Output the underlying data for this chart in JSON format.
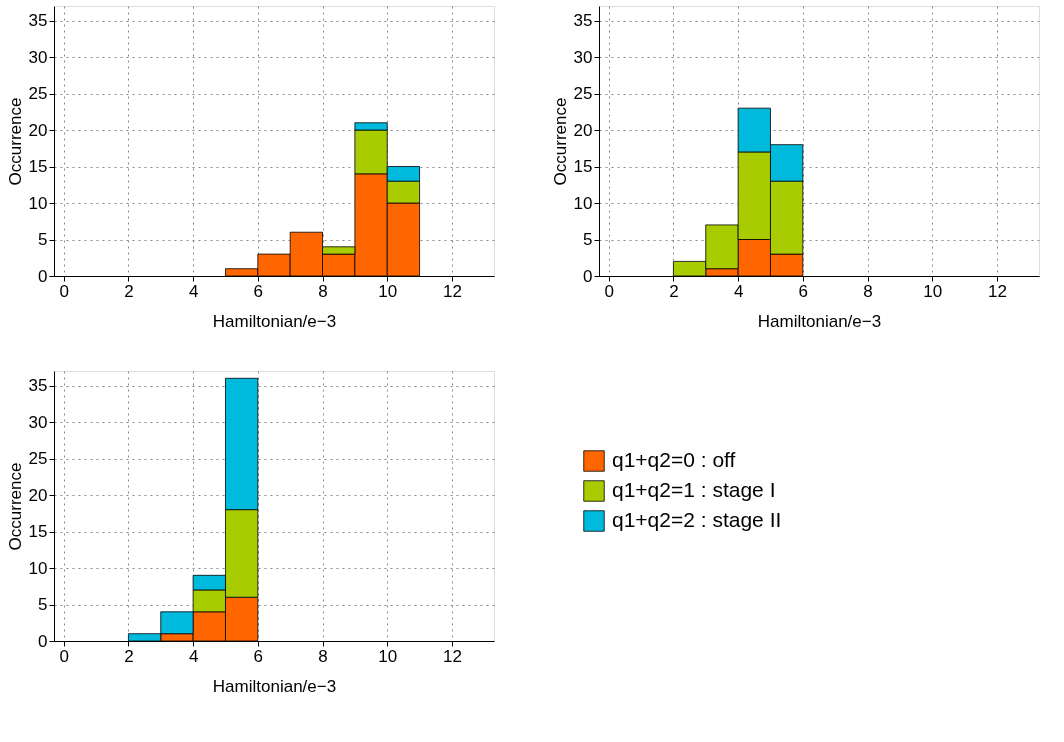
{
  "chart_data": [
    {
      "type": "bar",
      "xlabel": "Hamiltonian/e−3",
      "ylabel": "Occurrence",
      "stacked": true,
      "x": [
        5.5,
        6.5,
        7.5,
        8.5,
        9.5,
        10.5
      ],
      "xlim": [
        -0.3,
        13.3
      ],
      "ylim": [
        0,
        37
      ],
      "xticks": [
        0,
        2,
        4,
        6,
        8,
        10,
        12
      ],
      "yticks": [
        0,
        5,
        10,
        15,
        20,
        25,
        30,
        35
      ],
      "grid": true,
      "line_style": "dotted",
      "legend": "bottom right",
      "series": [
        {
          "name": "q1+q2=0 : off",
          "color": "#ff6600",
          "values": [
            1,
            3,
            6,
            3,
            14,
            10
          ]
        },
        {
          "name": "q1+q2=1 : stage I",
          "color": "#a8cc00",
          "values": [
            0,
            0,
            0,
            1,
            6,
            3
          ]
        },
        {
          "name": "q1+q2=2 : stage II",
          "color": "#00bade",
          "values": [
            0,
            0,
            0,
            0,
            1,
            2
          ]
        }
      ]
    },
    {
      "type": "bar",
      "xlabel": "Hamiltonian/e−3",
      "ylabel": "Occurrence",
      "stacked": true,
      "x": [
        2.5,
        3.5,
        4.5,
        5.5
      ],
      "xlim": [
        -0.3,
        13.3
      ],
      "ylim": [
        0,
        37
      ],
      "xticks": [
        0,
        2,
        4,
        6,
        8,
        10,
        12
      ],
      "yticks": [
        0,
        5,
        10,
        15,
        20,
        25,
        30,
        35
      ],
      "grid": true,
      "line_style": "dotted",
      "series": [
        {
          "color": "#ff6600",
          "values": [
            0,
            1,
            5,
            3
          ]
        },
        {
          "color": "#a8cc00",
          "values": [
            2,
            6,
            12,
            10
          ]
        },
        {
          "color": "#00bade",
          "values": [
            0,
            0,
            6,
            5
          ]
        }
      ]
    },
    {
      "type": "bar",
      "xlabel": "Hamiltonian/e−3",
      "ylabel": "Occurrence",
      "stacked": true,
      "x": [
        2.5,
        3.5,
        4.5,
        5.5
      ],
      "xlim": [
        -0.3,
        13.3
      ],
      "ylim": [
        0,
        37
      ],
      "xticks": [
        0,
        2,
        4,
        6,
        8,
        10,
        12
      ],
      "yticks": [
        0,
        5,
        10,
        15,
        20,
        25,
        30,
        35
      ],
      "grid": true,
      "line_style": "dotted",
      "series": [
        {
          "color": "#ff6600",
          "values": [
            0,
            1,
            4,
            6
          ]
        },
        {
          "color": "#a8cc00",
          "values": [
            0,
            0,
            3,
            12
          ]
        },
        {
          "color": "#00bade",
          "values": [
            1,
            3,
            2,
            18
          ]
        }
      ]
    }
  ]
}
